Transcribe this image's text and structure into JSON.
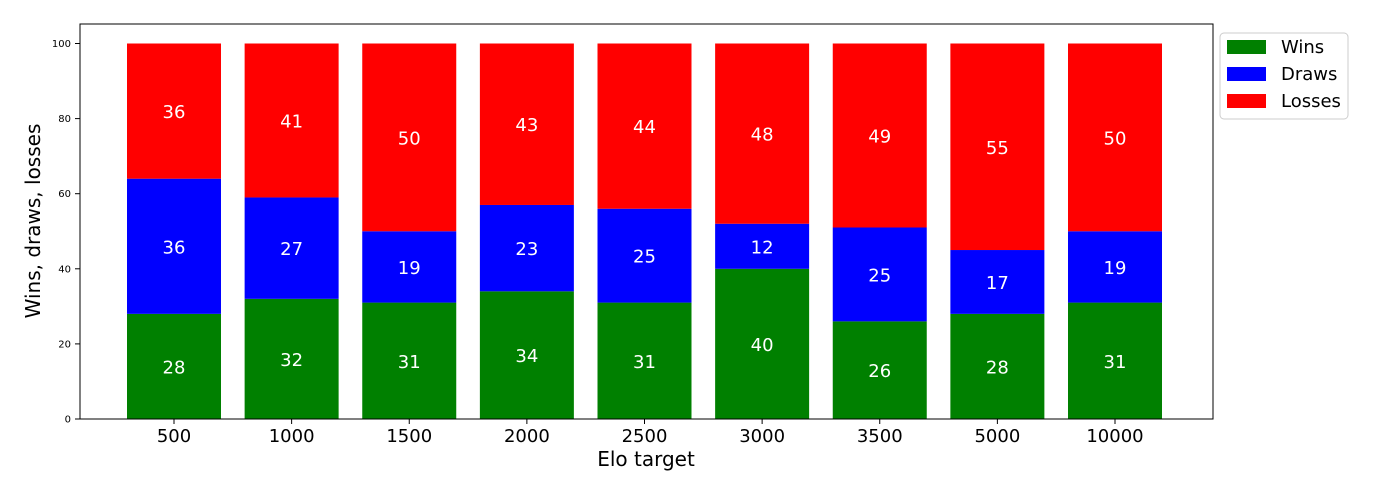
{
  "chart_data": {
    "type": "bar",
    "stacked": true,
    "categories": [
      "500",
      "1000",
      "1500",
      "2000",
      "2500",
      "3000",
      "3500",
      "5000",
      "10000"
    ],
    "series": [
      {
        "name": "Wins",
        "color": "#008000",
        "values": [
          28,
          32,
          31,
          34,
          31,
          40,
          26,
          28,
          31
        ]
      },
      {
        "name": "Draws",
        "color": "#0000ff",
        "values": [
          36,
          27,
          19,
          23,
          25,
          12,
          25,
          17,
          19
        ]
      },
      {
        "name": "Losses",
        "color": "#ff0000",
        "values": [
          36,
          41,
          50,
          43,
          44,
          48,
          49,
          55,
          50
        ]
      }
    ],
    "title": "",
    "xlabel": "Elo target",
    "ylabel": "Wins, draws, losses",
    "ylim": [
      0,
      100
    ],
    "yticks": [
      0,
      20,
      40,
      60,
      80,
      100
    ],
    "legend_position": "outside-top-right",
    "grid": false,
    "data_label_color": "#ffffff"
  }
}
